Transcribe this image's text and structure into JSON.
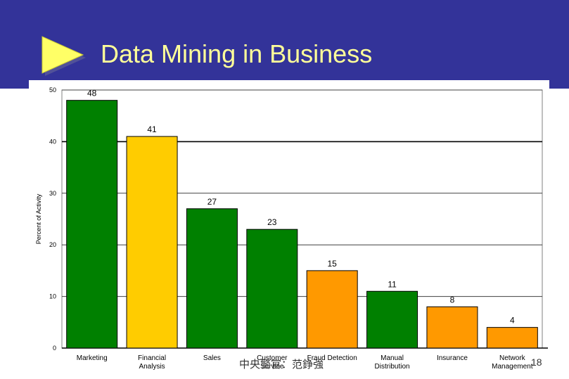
{
  "slide": {
    "title": "Data Mining in Business",
    "footer": "中央警官：范錚強",
    "page_number": "18"
  },
  "colors": {
    "header_bg": "#333399",
    "title_text": "#ffff99",
    "arrow": "#ffff66",
    "green": "#008000",
    "yellow": "#ffcc00",
    "orange": "#ff9900"
  },
  "chart_data": {
    "type": "bar",
    "title": "",
    "xlabel": "",
    "ylabel": "Percent of Activity",
    "ylim": [
      0,
      50
    ],
    "yticks": [
      0,
      10,
      20,
      30,
      40,
      50
    ],
    "grid": true,
    "categories": [
      [
        "Marketing"
      ],
      [
        "Financial",
        "Analysis"
      ],
      [
        "Sales"
      ],
      [
        "Customer",
        "Service"
      ],
      [
        "Fraud Detection"
      ],
      [
        "Manual",
        "Distribution"
      ],
      [
        "Insurance"
      ],
      [
        "Network",
        "Management"
      ]
    ],
    "values": [
      48,
      41,
      27,
      23,
      15,
      11,
      8,
      4
    ],
    "bar_colors": [
      "#008000",
      "#ffcc00",
      "#008000",
      "#008000",
      "#ff9900",
      "#008000",
      "#ff9900",
      "#ff9900"
    ]
  }
}
